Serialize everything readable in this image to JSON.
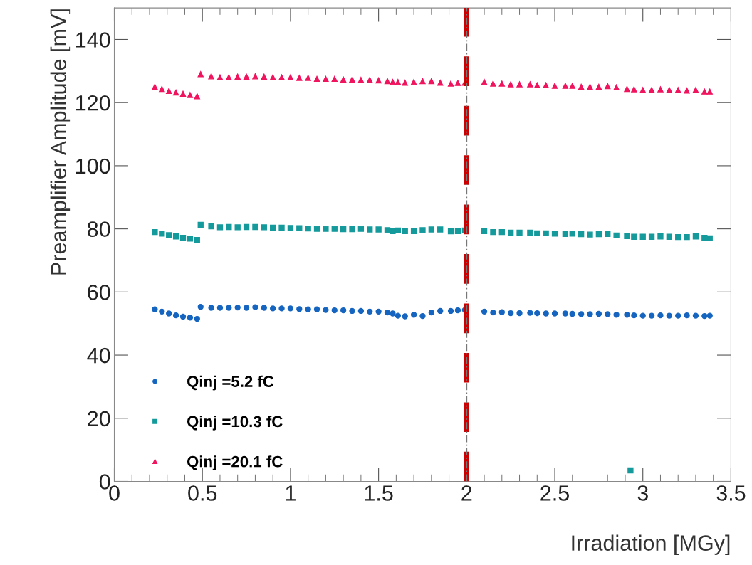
{
  "chart_data": {
    "type": "scatter",
    "xlabel": "Irradiation [MGy]",
    "ylabel": "Preamplifier Amplitude [mV]",
    "xlim": [
      0,
      3.5
    ],
    "xticks": [
      0,
      0.5,
      1,
      1.5,
      2,
      2.5,
      3,
      3.5
    ],
    "ylim": [
      0,
      150
    ],
    "yticks": [
      0,
      20,
      40,
      60,
      80,
      100,
      120,
      140
    ],
    "grid": false,
    "legend": "bottom left",
    "ref_lines": [
      {
        "axis": "x",
        "value": 2,
        "color": "#cc0000",
        "line_style": "dashed"
      },
      {
        "axis": "x",
        "value": 2,
        "color": "#777777",
        "line_style": "dotted"
      }
    ],
    "x": [
      0.23,
      0.27,
      0.31,
      0.35,
      0.39,
      0.43,
      0.47,
      0.49,
      0.55,
      0.6,
      0.65,
      0.7,
      0.75,
      0.8,
      0.85,
      0.9,
      0.95,
      1.0,
      1.05,
      1.1,
      1.15,
      1.2,
      1.25,
      1.3,
      1.35,
      1.4,
      1.45,
      1.5,
      1.55,
      1.58,
      1.61,
      1.65,
      1.7,
      1.75,
      1.8,
      1.85,
      1.91,
      1.95,
      1.99,
      2.1,
      2.15,
      2.2,
      2.25,
      2.3,
      2.36,
      2.4,
      2.45,
      2.5,
      2.56,
      2.6,
      2.65,
      2.7,
      2.75,
      2.8,
      2.85,
      2.91,
      2.95,
      3.0,
      3.05,
      3.1,
      3.15,
      3.2,
      3.25,
      3.3,
      3.35,
      3.38
    ],
    "series": [
      {
        "name": "Qinj =5.2 fC",
        "color": "#1565c0",
        "marker": "circle",
        "values": [
          54.5,
          53.8,
          53.2,
          52.6,
          52.2,
          51.9,
          51.5,
          55.3,
          55,
          55,
          55,
          55.1,
          55,
          55.2,
          55,
          54.8,
          54.8,
          54.8,
          54.6,
          54.5,
          54.5,
          54.3,
          54.2,
          54.2,
          54,
          54,
          53.8,
          53.8,
          53.5,
          53.2,
          52.5,
          52.3,
          52.8,
          52.4,
          53.5,
          54,
          54,
          54.2,
          54.3,
          53.8,
          53.5,
          53.6,
          53.3,
          53.3,
          53.4,
          53.3,
          53.2,
          53.2,
          53.2,
          53.1,
          53,
          53,
          53.1,
          53,
          52.8,
          52.8,
          52.6,
          52.5,
          52.5,
          52.6,
          52.5,
          52.5,
          52.6,
          52.5,
          52.4,
          52.5
        ]
      },
      {
        "name": "Qinj =10.3 fC",
        "color": "#159a9c",
        "marker": "square",
        "x": [
          0.23,
          0.27,
          0.31,
          0.35,
          0.39,
          0.43,
          0.47,
          0.49,
          0.55,
          0.6,
          0.65,
          0.7,
          0.75,
          0.8,
          0.85,
          0.9,
          0.95,
          1.0,
          1.05,
          1.1,
          1.15,
          1.2,
          1.25,
          1.3,
          1.35,
          1.4,
          1.45,
          1.5,
          1.55,
          1.58,
          1.61,
          1.65,
          1.7,
          1.75,
          1.8,
          1.85,
          1.91,
          1.95,
          1.99,
          2.1,
          2.15,
          2.2,
          2.25,
          2.3,
          2.36,
          2.4,
          2.45,
          2.5,
          2.56,
          2.6,
          2.65,
          2.7,
          2.75,
          2.8,
          2.85,
          2.91,
          2.93,
          2.95,
          3.0,
          3.05,
          3.1,
          3.15,
          3.2,
          3.25,
          3.3,
          3.35,
          3.38
        ],
        "values": [
          79,
          78.5,
          78,
          77.6,
          77.2,
          76.9,
          76.5,
          81.3,
          80.8,
          80.5,
          80.6,
          80.5,
          80.6,
          80.6,
          80.5,
          80.4,
          80.4,
          80.3,
          80.2,
          80.1,
          80,
          80,
          80,
          79.9,
          79.9,
          80,
          79.8,
          79.8,
          79.6,
          79.3,
          79.5,
          79.3,
          79.3,
          79.6,
          79.8,
          79.8,
          79.2,
          79.3,
          79.5,
          79.3,
          79,
          79,
          78.8,
          78.8,
          78.8,
          78.6,
          78.6,
          78.5,
          78.4,
          78.5,
          78.3,
          78.2,
          78.3,
          78.4,
          77.9,
          77.7,
          3.5,
          77.5,
          77.5,
          77.5,
          77.6,
          77.5,
          77.4,
          77.4,
          77.6,
          77.2,
          77
        ]
      },
      {
        "name": "Qinj =20.1 fC",
        "color": "#f0145e",
        "marker": "triangle",
        "values": [
          125,
          124.3,
          123.7,
          123.2,
          122.8,
          122.4,
          122,
          129,
          128.3,
          128,
          128,
          128.2,
          128.2,
          128.3,
          128.2,
          128,
          128,
          128,
          127.8,
          127.8,
          127.5,
          127.5,
          127.5,
          127.3,
          127.3,
          127.2,
          127.2,
          127,
          126.8,
          126.5,
          126.5,
          126.3,
          126.5,
          126.8,
          126.8,
          126.3,
          126,
          126.2,
          126.3,
          126.5,
          126,
          126,
          125.8,
          125.8,
          125.8,
          125.5,
          125.5,
          125.3,
          125.3,
          125.3,
          125,
          125,
          125,
          125.2,
          124.8,
          124.3,
          124.2,
          124,
          124,
          124.2,
          124,
          124,
          123.8,
          124,
          123.5,
          123.5
        ]
      }
    ]
  }
}
